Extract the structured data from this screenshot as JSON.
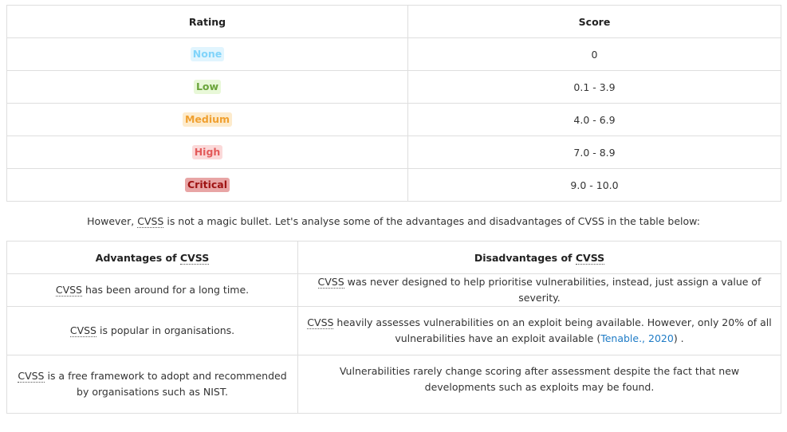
{
  "ratings_table": {
    "headers": [
      "Rating",
      "Score"
    ],
    "rows": [
      {
        "rating": "None",
        "score": "0"
      },
      {
        "rating": "Low",
        "score": "0.1 - 3.9"
      },
      {
        "rating": "Medium",
        "score": "4.0 - 6.9"
      },
      {
        "rating": "High",
        "score": "7.0 - 8.9"
      },
      {
        "rating": "Critical",
        "score": "9.0 - 10.0"
      }
    ]
  },
  "intro": {
    "before": "However, ",
    "abbr": "CVSS",
    "after": " is not a magic bullet. Let's analyse some of the advantages and disadvantages of CVSS in the table below:"
  },
  "compare_table": {
    "header_adv_prefix": "Advantages of ",
    "header_dis_prefix": "Disadvantages of ",
    "abbr": "CVSS",
    "rows": [
      {
        "adv": " has been around for a long time.",
        "dis": " was never designed to help prioritise vulnerabilities, instead, just assign a value of severity."
      },
      {
        "adv": " is popular in organisations.",
        "dis": " heavily assesses vulnerabilities on an exploit being available. However, only 20% of all vulnerabilities have an exploit available (",
        "dis_link": "Tenable., 2020",
        "dis_end": ") ."
      },
      {
        "adv": " is a free framework to adopt and recommended by organisations such as NIST.",
        "dis": "Vulnerabilities rarely change scoring after assessment despite the fact that new developments such as exploits may be found."
      }
    ]
  }
}
